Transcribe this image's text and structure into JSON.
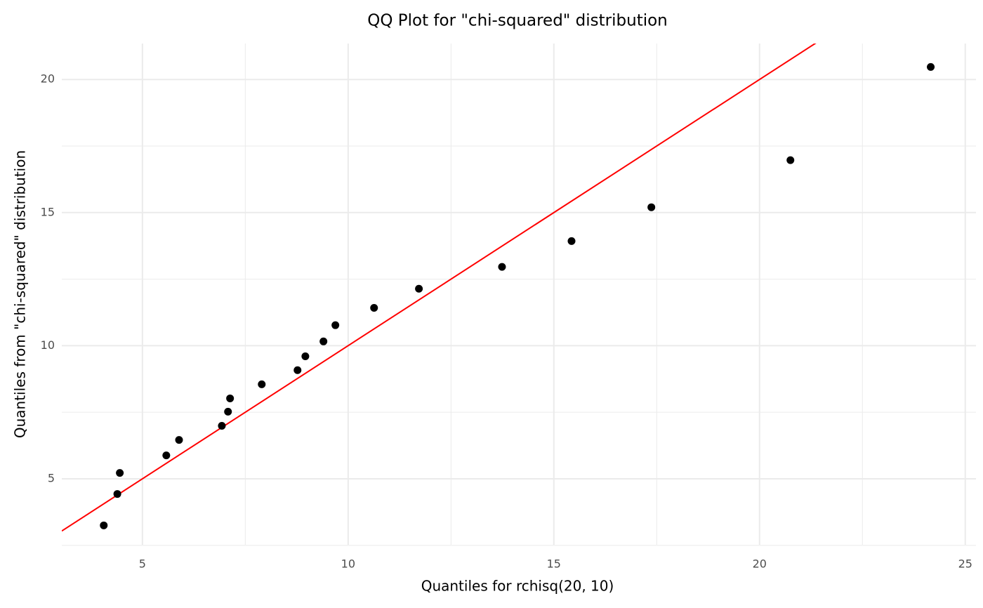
{
  "chart_data": {
    "type": "scatter",
    "title": "QQ Plot for \"chi-squared\" distribution",
    "x_label": "Quantiles for rchisq(20, 10)",
    "y_label": "Quantiles from \"chi-squared\" distribution",
    "x": [
      4.06,
      4.39,
      4.45,
      5.58,
      5.89,
      6.93,
      7.08,
      7.13,
      7.9,
      8.77,
      8.96,
      9.4,
      9.69,
      10.63,
      11.72,
      13.74,
      15.43,
      17.37,
      20.75,
      24.16
    ],
    "series": [
      {
        "color": "#000000",
        "values": [
          3.25,
          4.43,
          5.22,
          5.88,
          6.46,
          6.99,
          7.52,
          8.02,
          8.55,
          9.08,
          9.6,
          10.16,
          10.77,
          11.42,
          12.14,
          12.96,
          13.93,
          15.2,
          16.97,
          20.47
        ]
      }
    ],
    "reference_line": {
      "slope": 1,
      "intercept": 0,
      "color": "#ff0000"
    },
    "xlim": [
      3.04,
      25.26
    ],
    "ylim": [
      2.52,
      21.35
    ],
    "xticks": [
      5,
      10,
      15,
      20,
      25
    ],
    "yticks": [
      5,
      10,
      15,
      20
    ],
    "x_minor_grid": [
      7.5,
      12.5,
      17.5,
      22.5
    ],
    "y_minor_grid": [
      2.5,
      7.5,
      12.5,
      17.5
    ],
    "grid": true
  }
}
